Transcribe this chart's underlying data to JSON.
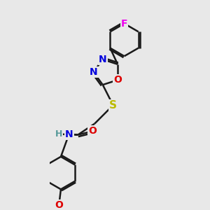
{
  "bg_color": "#e8e8e8",
  "bond_color": "#1a1a1a",
  "atom_colors": {
    "N": "#0000dd",
    "O": "#dd0000",
    "S": "#bbbb00",
    "F": "#ee00ee",
    "H": "#559999"
  },
  "bond_width": 1.8,
  "doffset": 0.045,
  "font_size": 10,
  "figsize": [
    3.0,
    3.0
  ],
  "dpi": 100,
  "xlim": [
    -1.6,
    1.4
  ],
  "ylim": [
    -1.8,
    3.6
  ]
}
